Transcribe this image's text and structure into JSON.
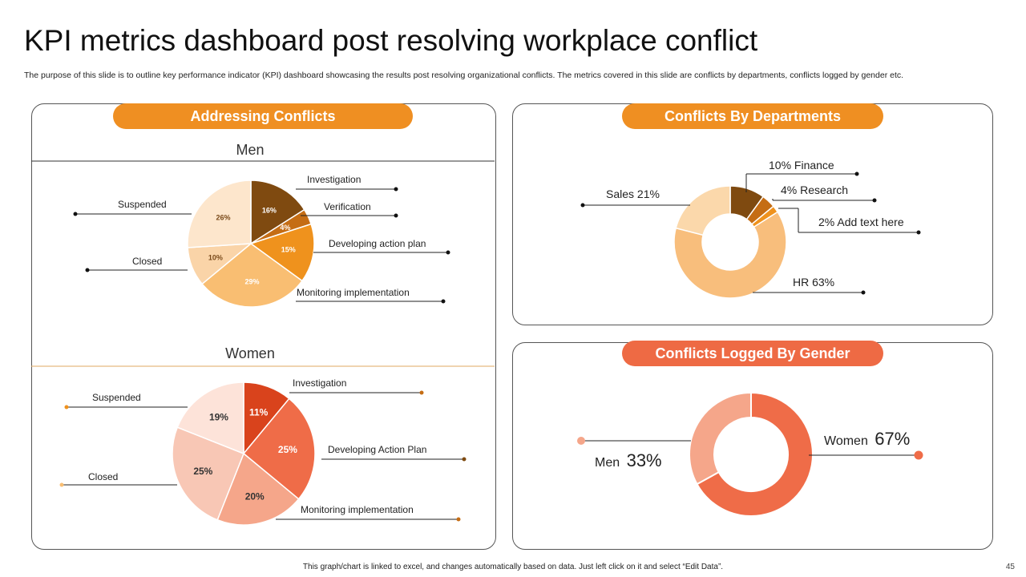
{
  "header": {
    "title": "KPI metrics dashboard post resolving workplace conflict",
    "subtitle": "The purpose of this slide is to outline key performance indicator (KPI) dashboard showcasing the results post resolving organizational conflicts. The metrics covered in this slide are conflicts by departments, conflicts logged by gender etc."
  },
  "panels": {
    "addressing": "Addressing Conflicts",
    "departments": "Conflicts By Departments",
    "gender": "Conflicts Logged By Gender"
  },
  "colors": {
    "orange_pill": "#ef8f22",
    "red_pill": "#ee6a44"
  },
  "chart_data": [
    {
      "id": "men",
      "type": "pie",
      "title": "Men",
      "slices": [
        {
          "label": "Investigation",
          "value": 16,
          "display": "16%",
          "color": "#7f4a10",
          "text_color": "#ffffff"
        },
        {
          "label": "Verification",
          "value": 4,
          "display": "4%",
          "color": "#c56d14",
          "text_color": "#ffffff"
        },
        {
          "label": "Developing action plan",
          "value": 15,
          "display": "15%",
          "color": "#ef921d",
          "text_color": "#ffffff"
        },
        {
          "label": "Monitoring implementation",
          "value": 29,
          "display": "29%",
          "color": "#f9be72",
          "text_color": "#ffffff"
        },
        {
          "label": "Closed",
          "value": 10,
          "display": "10%",
          "color": "#fad4a8",
          "text_color": "#7a4a1a"
        },
        {
          "label": "Suspended",
          "value": 26,
          "display": "26%",
          "color": "#fde6cc",
          "text_color": "#7a4a1a"
        }
      ]
    },
    {
      "id": "women",
      "type": "pie",
      "title": "Women",
      "slices": [
        {
          "label": "Investigation",
          "value": 11,
          "display": "11%",
          "color": "#d9431c",
          "text_color": "#ffffff"
        },
        {
          "label": "Developing Action Plan",
          "value": 25,
          "display": "25%",
          "color": "#ef6c48",
          "text_color": "#ffffff"
        },
        {
          "label": "Monitoring implementation",
          "value": 20,
          "display": "20%",
          "color": "#f5a68a",
          "text_color": "#333333"
        },
        {
          "label": "Closed",
          "value": 25,
          "display": "25%",
          "color": "#f8c7b5",
          "text_color": "#333333"
        },
        {
          "label": "Suspended",
          "value": 19,
          "display": "19%",
          "color": "#fde3d9",
          "text_color": "#333333"
        }
      ]
    },
    {
      "id": "departments",
      "type": "pie",
      "title": "Conflicts By Departments",
      "slices": [
        {
          "label": "Finance",
          "value": 10,
          "display": "10% Finance",
          "color": "#7f4a10"
        },
        {
          "label": "Research",
          "value": 4,
          "display": "4% Research",
          "color": "#c56d14"
        },
        {
          "label": "Add text here",
          "value": 2,
          "display": "2% Add text here",
          "color": "#ef921d"
        },
        {
          "label": "HR",
          "value": 63,
          "display": "HR 63%",
          "color": "#f8be7c"
        },
        {
          "label": "Sales",
          "value": 21,
          "display": "Sales 21%",
          "color": "#fbd8ab"
        }
      ]
    },
    {
      "id": "gender",
      "type": "pie",
      "title": "Conflicts Logged By Gender",
      "slices": [
        {
          "label": "Women",
          "value": 67,
          "display": "67%",
          "color": "#ef6c48"
        },
        {
          "label": "Men",
          "value": 33,
          "display": "33%",
          "color": "#f5a68a"
        }
      ]
    }
  ],
  "footer": {
    "note": "This graph/chart is linked to excel, and changes automatically based on data. Just left click on it and select “Edit Data”.",
    "page_number": "45"
  }
}
